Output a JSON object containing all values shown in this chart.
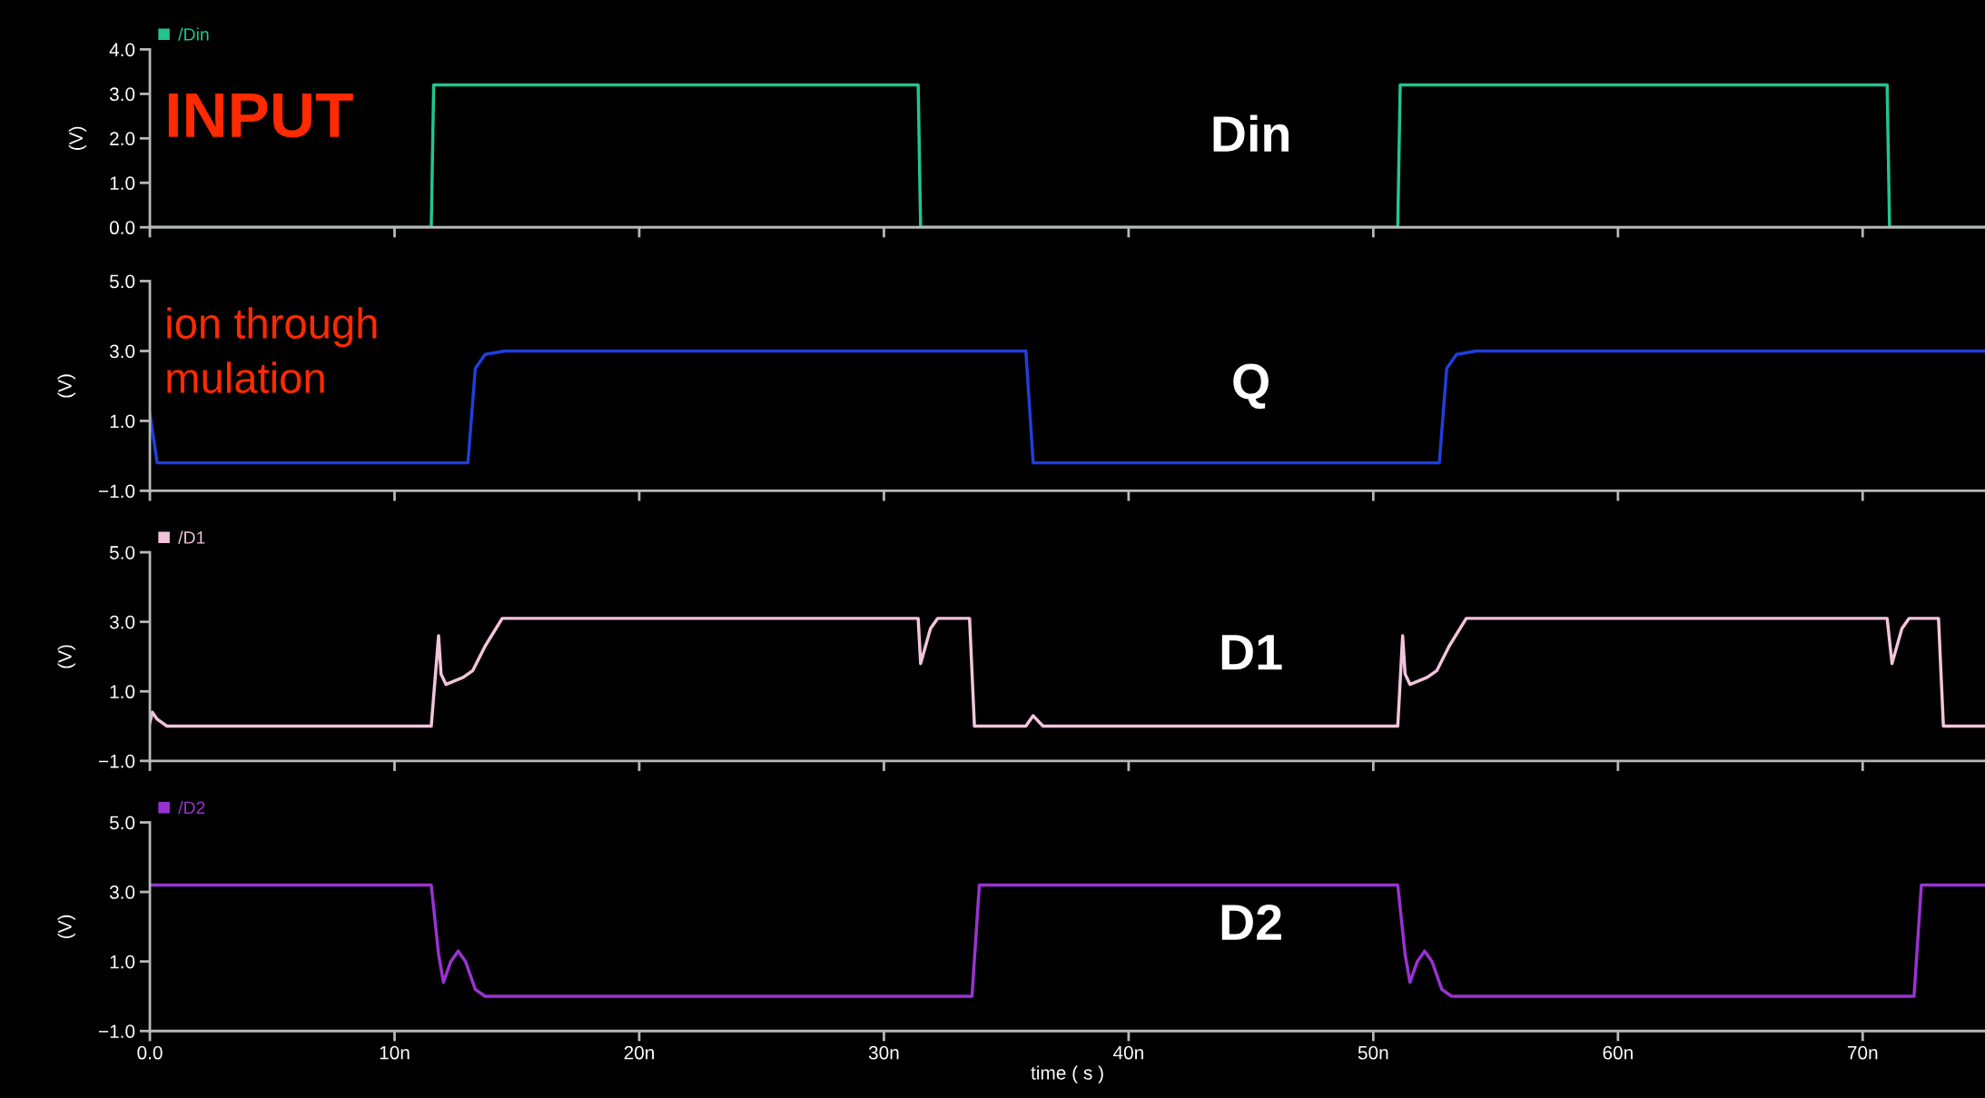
{
  "chart_data": [
    {
      "type": "line",
      "ylabel": "(V)",
      "xlim": [
        0,
        75
      ],
      "xticks": [
        0,
        10,
        20,
        30,
        40,
        50,
        60,
        70
      ],
      "tick_labels": "y",
      "ylim": [
        0,
        4
      ],
      "yticks": [
        {
          "value": 0,
          "label": "0.0"
        },
        {
          "value": 1,
          "label": "1.0"
        },
        {
          "value": 2,
          "label": "2.0"
        },
        {
          "value": 3,
          "label": "3.0"
        },
        {
          "value": 4,
          "label": "4.0"
        }
      ],
      "legend": "top left",
      "grid": false,
      "marker": "none",
      "line_style": "solid",
      "annotations": [
        "INPUT",
        "Din"
      ],
      "series": [
        {
          "name": "/Din",
          "color": "#22c58c",
          "x": [
            0,
            11.5,
            11.6,
            31.4,
            31.5,
            51.0,
            51.1,
            71.0,
            71.1,
            75
          ],
          "values": [
            0,
            0,
            3.2,
            3.2,
            0,
            0,
            3.2,
            3.2,
            0,
            0
          ]
        }
      ]
    },
    {
      "type": "line",
      "ylabel": "(V)",
      "xlim": [
        0,
        75
      ],
      "xticks": [
        0,
        10,
        20,
        30,
        40,
        50,
        60,
        70
      ],
      "tick_labels": "y",
      "ylim": [
        -1,
        5
      ],
      "yticks": [
        {
          "value": -1,
          "label": "−1.0"
        },
        {
          "value": 1,
          "label": "1.0"
        },
        {
          "value": 3,
          "label": "3.0"
        },
        {
          "value": 5,
          "label": "5.0"
        }
      ],
      "grid": false,
      "marker": "none",
      "line_style": "solid",
      "annotations": [
        "ion through",
        "mulation",
        "Q"
      ],
      "series": [
        {
          "color": "#1f3fdc",
          "x": [
            0,
            0.3,
            13.0,
            13.3,
            13.7,
            14.5,
            35.8,
            36.1,
            52.7,
            53.0,
            53.4,
            54.2,
            75
          ],
          "values": [
            1.2,
            -0.2,
            -0.2,
            2.5,
            2.9,
            3.0,
            3.0,
            -0.2,
            -0.2,
            2.5,
            2.9,
            3.0,
            3.0
          ]
        }
      ]
    },
    {
      "type": "line",
      "ylabel": "(V)",
      "xlim": [
        0,
        75
      ],
      "xticks": [
        0,
        10,
        20,
        30,
        40,
        50,
        60,
        70
      ],
      "tick_labels": "y",
      "ylim": [
        -1,
        5
      ],
      "yticks": [
        {
          "value": -1,
          "label": "−1.0"
        },
        {
          "value": 1,
          "label": "1.0"
        },
        {
          "value": 3,
          "label": "3.0"
        },
        {
          "value": 5,
          "label": "5.0"
        }
      ],
      "legend": "top left",
      "grid": false,
      "marker": "none",
      "line_style": "solid",
      "annotations": [
        "D1"
      ],
      "series": [
        {
          "name": "/D1",
          "color": "#f2c4dc",
          "x": [
            0,
            0.1,
            0.3,
            0.7,
            11.5,
            11.8,
            11.9,
            12.1,
            12.8,
            13.2,
            13.7,
            14.4,
            31.4,
            31.5,
            31.9,
            32.2,
            33.5,
            33.7,
            35.8,
            36.1,
            36.5,
            51.0,
            51.2,
            51.3,
            51.5,
            52.2,
            52.6,
            53.1,
            53.8,
            71.0,
            71.2,
            71.6,
            71.9,
            73.1,
            73.3,
            75
          ],
          "values": [
            0.1,
            0.4,
            0.2,
            0.0,
            0.0,
            2.6,
            1.5,
            1.2,
            1.4,
            1.6,
            2.3,
            3.1,
            3.1,
            1.8,
            2.8,
            3.1,
            3.1,
            0.0,
            0.0,
            0.3,
            0.0,
            0.0,
            2.6,
            1.5,
            1.2,
            1.4,
            1.6,
            2.3,
            3.1,
            3.1,
            1.8,
            2.8,
            3.1,
            3.1,
            0.0,
            0.0
          ]
        }
      ]
    },
    {
      "type": "line",
      "ylabel": "(V)",
      "xlabel": "time ( s )",
      "xlim": [
        0,
        75
      ],
      "xticks": [
        {
          "value": 0,
          "label": "0.0"
        },
        {
          "value": 10,
          "label": "10n"
        },
        {
          "value": 20,
          "label": "20n"
        },
        {
          "value": 30,
          "label": "30n"
        },
        {
          "value": 40,
          "label": "40n"
        },
        {
          "value": 50,
          "label": "50n"
        },
        {
          "value": 60,
          "label": "60n"
        },
        {
          "value": 70,
          "label": "70n"
        }
      ],
      "ylim": [
        -1,
        5
      ],
      "yticks": [
        {
          "value": -1,
          "label": "−1.0"
        },
        {
          "value": 1,
          "label": "1.0"
        },
        {
          "value": 3,
          "label": "3.0"
        },
        {
          "value": 5,
          "label": "5.0"
        }
      ],
      "legend": "top left",
      "grid": false,
      "marker": "none",
      "line_style": "solid",
      "annotations": [
        "D2"
      ],
      "series": [
        {
          "name": "/D2",
          "color": "#9a32d2",
          "x": [
            0,
            11.5,
            11.8,
            12.0,
            12.3,
            12.6,
            12.9,
            13.3,
            13.7,
            33.6,
            33.9,
            51.0,
            51.3,
            51.5,
            51.8,
            52.1,
            52.4,
            52.8,
            53.2,
            72.1,
            72.4,
            75
          ],
          "values": [
            3.2,
            3.2,
            1.2,
            0.4,
            1.0,
            1.3,
            1.0,
            0.2,
            0.0,
            0.0,
            3.2,
            3.2,
            1.2,
            0.4,
            1.0,
            1.3,
            1.0,
            0.2,
            0.0,
            0.0,
            3.2,
            3.2
          ]
        }
      ]
    }
  ]
}
